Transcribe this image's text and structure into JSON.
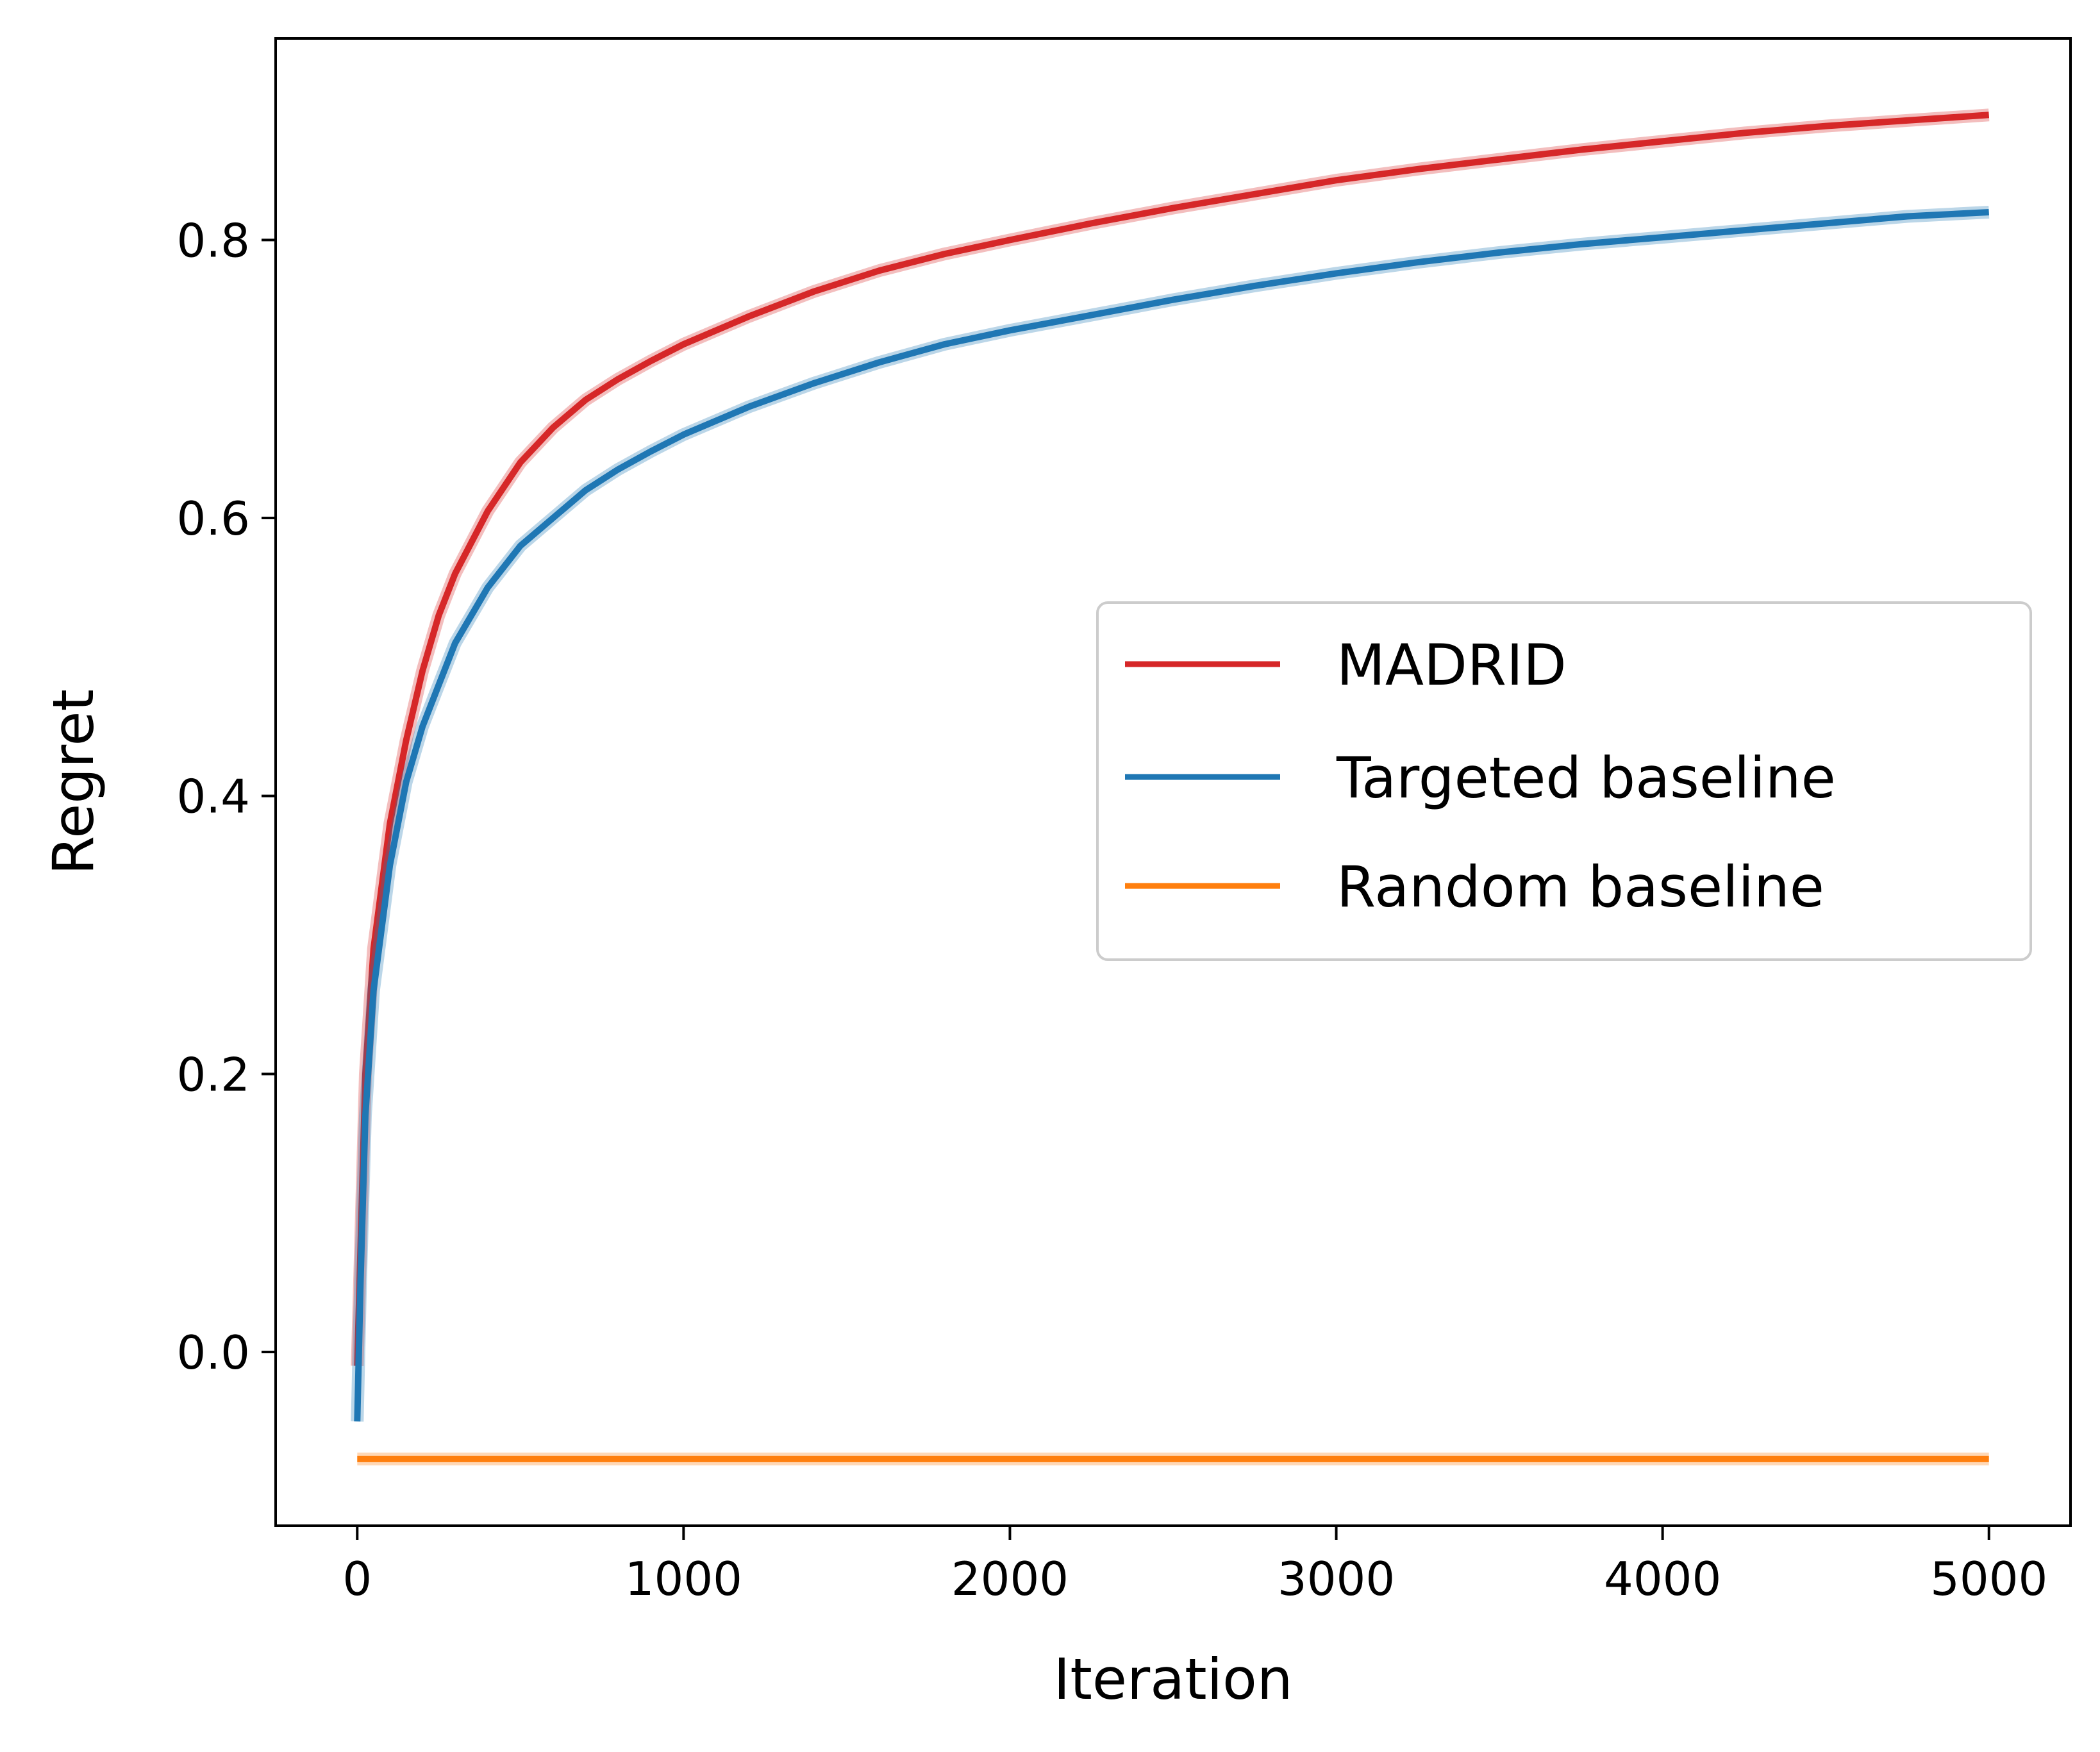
{
  "chart_data": {
    "type": "line",
    "title": "",
    "xlabel": "Iteration",
    "ylabel": "Regret",
    "xlim": [
      -250,
      5250
    ],
    "ylim": [
      -0.125,
      0.945
    ],
    "xticks": [
      0,
      1000,
      2000,
      3000,
      4000,
      5000
    ],
    "xtick_labels": [
      "0",
      "1000",
      "2000",
      "3000",
      "4000",
      "5000"
    ],
    "yticks": [
      0.0,
      0.2,
      0.4,
      0.6,
      0.8
    ],
    "ytick_labels": [
      "0.0",
      "0.2",
      "0.4",
      "0.6",
      "0.8"
    ],
    "grid": false,
    "legend_position": "center-right",
    "series": [
      {
        "name": "MADRID",
        "color": "#d62728",
        "x": [
          0,
          25,
          50,
          100,
          150,
          200,
          250,
          300,
          400,
          500,
          600,
          700,
          800,
          900,
          1000,
          1200,
          1400,
          1600,
          1800,
          2000,
          2250,
          2500,
          2750,
          3000,
          3250,
          3500,
          3750,
          4000,
          4250,
          4500,
          4750,
          5000
        ],
        "values": [
          -0.01,
          0.2,
          0.29,
          0.38,
          0.44,
          0.49,
          0.53,
          0.56,
          0.605,
          0.64,
          0.665,
          0.685,
          0.7,
          0.713,
          0.725,
          0.745,
          0.763,
          0.778,
          0.79,
          0.8,
          0.812,
          0.823,
          0.833,
          0.843,
          0.851,
          0.858,
          0.865,
          0.871,
          0.877,
          0.882,
          0.886,
          0.89
        ]
      },
      {
        "name": "Targeted baseline",
        "color": "#1f77b4",
        "x": [
          0,
          10,
          25,
          50,
          100,
          150,
          200,
          250,
          300,
          400,
          500,
          600,
          700,
          800,
          900,
          1000,
          1200,
          1400,
          1600,
          1800,
          2000,
          2250,
          2500,
          2750,
          3000,
          3250,
          3500,
          3750,
          4000,
          4250,
          4500,
          4750,
          5000
        ],
        "values": [
          -0.05,
          0.05,
          0.17,
          0.26,
          0.35,
          0.41,
          0.45,
          0.48,
          0.51,
          0.55,
          0.58,
          0.6,
          0.62,
          0.635,
          0.648,
          0.66,
          0.68,
          0.697,
          0.712,
          0.725,
          0.735,
          0.746,
          0.757,
          0.767,
          0.776,
          0.784,
          0.791,
          0.797,
          0.802,
          0.807,
          0.812,
          0.817,
          0.82
        ]
      },
      {
        "name": "Random baseline",
        "color": "#ff7f0e",
        "x": [
          0,
          5000
        ],
        "values": [
          -0.077,
          -0.077
        ]
      }
    ]
  }
}
